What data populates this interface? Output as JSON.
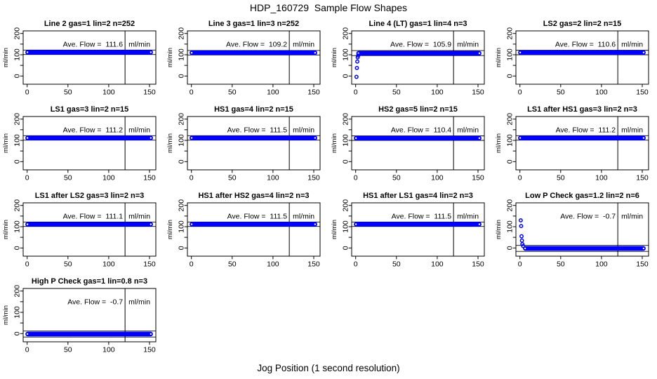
{
  "colors": {
    "point_blue": "#0000FF",
    "axis_black": "#000000",
    "background": "#FFFFFF"
  },
  "chart_data": {
    "type": "scatter",
    "title": "HDP_160729  Sample Flow Shapes",
    "xlabel": "Jog Position (1 second resolution)",
    "ylabel": "ml/min",
    "layout": {
      "rows": 4,
      "cols": 4,
      "grid": true
    },
    "xticks": [
      0,
      50,
      100,
      150
    ],
    "yticks_labeled": [
      0,
      100,
      200
    ],
    "yticks_all": [
      0,
      50,
      100,
      150,
      200
    ],
    "xlim": [
      -6,
      158
    ],
    "ylim": [
      -39,
      214
    ],
    "marker_vline_x": 120,
    "ave_flow_label": "Ave. Flow =",
    "unit": "ml/min",
    "plots": [
      {
        "title": "Line 2 gas=1 lin=2 n=252",
        "ave_flow": 111.6,
        "band": {
          "y": 111.6,
          "x_start": 0,
          "x_end": 152
        },
        "ref_lines": [
          122,
          101
        ],
        "transient_points": []
      },
      {
        "title": "Line 3 gas=1 lin=3 n=252",
        "ave_flow": 109.2,
        "band": {
          "y": 109.2,
          "x_start": 0,
          "x_end": 152
        },
        "ref_lines": [
          120,
          99
        ],
        "transient_points": []
      },
      {
        "title": "Line 4 (LT) gas=1 lin=4 n=3",
        "ave_flow": 105.9,
        "band": {
          "y": 107,
          "x_start": 3,
          "x_end": 152
        },
        "ref_lines": [
          119.5,
          96
        ],
        "transient_points": [
          [
            1,
            -4
          ],
          [
            1.5,
            38
          ],
          [
            2,
            68
          ],
          [
            2.5,
            88
          ],
          [
            3,
            96
          ]
        ]
      },
      {
        "title": "LS2 gas=2 lin=2 n=15",
        "ave_flow": 110.6,
        "band": {
          "y": 110.6,
          "x_start": 0,
          "x_end": 152
        },
        "ref_lines": [
          121,
          100
        ],
        "transient_points": []
      },
      {
        "title": "LS1 gas=3 lin=2 n=15",
        "ave_flow": 111.2,
        "band": {
          "y": 111.2,
          "x_start": 0,
          "x_end": 152
        },
        "ref_lines": [
          122,
          101
        ],
        "transient_points": []
      },
      {
        "title": "HS1 gas=4 lin=2 n=15",
        "ave_flow": 111.5,
        "band": {
          "y": 111.5,
          "x_start": 0,
          "x_end": 152
        },
        "ref_lines": [
          122,
          101
        ],
        "transient_points": []
      },
      {
        "title": "HS2 gas=5 lin=2 n=15",
        "ave_flow": 110.4,
        "band": {
          "y": 110.4,
          "x_start": 0,
          "x_end": 152
        },
        "ref_lines": [
          121,
          100
        ],
        "transient_points": []
      },
      {
        "title": "LS1 after HS1 gas=3 lin=2 n=3",
        "ave_flow": 111.2,
        "band": {
          "y": 111.2,
          "x_start": 0,
          "x_end": 152
        },
        "ref_lines": [
          122,
          101
        ],
        "transient_points": []
      },
      {
        "title": "LS1 after LS2 gas=3 lin=2 n=3",
        "ave_flow": 111.1,
        "band": {
          "y": 111.1,
          "x_start": 0,
          "x_end": 152
        },
        "ref_lines": [
          122,
          101
        ],
        "transient_points": []
      },
      {
        "title": "HS1 after HS2 gas=4 lin=2 n=3",
        "ave_flow": 111.5,
        "band": {
          "y": 111.5,
          "x_start": 0,
          "x_end": 152
        },
        "ref_lines": [
          122,
          101
        ],
        "transient_points": []
      },
      {
        "title": "HS1 after LS1 gas=4 lin=2 n=3",
        "ave_flow": 111.5,
        "band": {
          "y": 111.5,
          "x_start": 0,
          "x_end": 152
        },
        "ref_lines": [
          122,
          101
        ],
        "transient_points": []
      },
      {
        "title": "Low P Check gas=1.2 lin=2 n=6",
        "ave_flow": -0.7,
        "band": {
          "y": -2,
          "x_start": 6,
          "x_end": 152
        },
        "ref_lines": [
          12,
          -16
        ],
        "transient_points": [
          [
            1,
            130
          ],
          [
            1.5,
            103
          ],
          [
            2,
            55
          ],
          [
            2.5,
            35
          ],
          [
            3,
            18
          ],
          [
            4,
            9
          ]
        ]
      },
      {
        "title": "High P Check gas=1 lin=0.8 n=3",
        "ave_flow": -0.7,
        "band": {
          "y": -2,
          "x_start": 0,
          "x_end": 152
        },
        "ref_lines": [
          12,
          -16
        ],
        "transient_points": []
      }
    ]
  }
}
